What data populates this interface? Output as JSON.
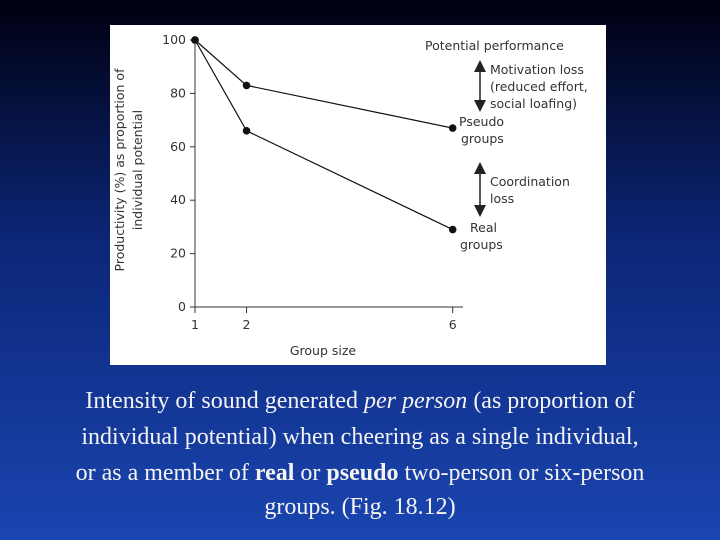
{
  "chart_data": {
    "type": "line",
    "y_label_lines": [
      "Productivity (%) as proportion of",
      "individual potential"
    ],
    "x_label": "Group size",
    "xlim": [
      1,
      6.2
    ],
    "xticks": [
      1,
      2,
      6
    ],
    "ylim": [
      0,
      100
    ],
    "yticks": [
      0,
      20,
      40,
      60,
      80,
      100
    ],
    "series": [
      {
        "name": "Pseudo groups",
        "color": "#111111",
        "x": [
          1,
          2,
          6
        ],
        "values": [
          100,
          83,
          67
        ]
      },
      {
        "name": "Real groups",
        "color": "#111111",
        "x": [
          1,
          2,
          6
        ],
        "values": [
          100,
          66,
          29
        ]
      }
    ],
    "annotations": [
      {
        "lines": [
          "Potential performance"
        ]
      },
      {
        "lines": [
          "Motivation loss",
          "(reduced effort,",
          "social loafing)"
        ]
      },
      {
        "lines": [
          "Coordination",
          "loss"
        ]
      }
    ]
  },
  "caption": {
    "lines": [
      [
        {
          "text": "Intensity of sound generated "
        },
        {
          "text": "per person",
          "style": "italic"
        },
        {
          "text": " (as proportion of"
        }
      ],
      [
        {
          "text": "individual potential) when cheering as a single individual,"
        }
      ],
      [
        {
          "text": "or as a member of "
        },
        {
          "text": "real",
          "style": "bold"
        },
        {
          "text": " or "
        },
        {
          "text": "pseudo",
          "style": "bold"
        },
        {
          "text": " two-person or six-person"
        }
      ],
      [
        {
          "text": "groups. (Fig. 18.12)"
        }
      ]
    ]
  }
}
